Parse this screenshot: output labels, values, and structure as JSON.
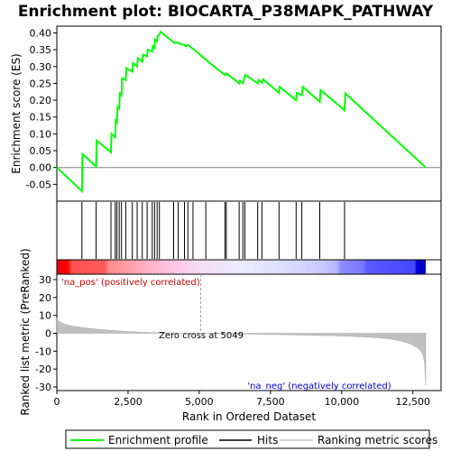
{
  "chart_data": [
    {
      "type": "line",
      "title": "Enrichment plot: BIOCARTA_P38MAPK_PATHWAY",
      "ylabel": "Enrichment score (ES)",
      "xlim": [
        0,
        12950
      ],
      "ylim": [
        -0.1,
        0.42
      ],
      "yticks": [
        -0.05,
        0.0,
        0.05,
        0.1,
        0.15,
        0.2,
        0.25,
        0.3,
        0.35,
        0.4
      ],
      "ytick_labels": [
        "-0.05",
        "0.00",
        "0.05",
        "0.10",
        "0.15",
        "0.20",
        "0.25",
        "0.30",
        "0.35",
        "0.40"
      ],
      "grid": false,
      "series": [
        {
          "name": "Enrichment profile",
          "color": "#00ff00",
          "x": [
            0,
            880,
            900,
            1380,
            1400,
            1900,
            1920,
            2050,
            2070,
            2110,
            2130,
            2190,
            2210,
            2270,
            2290,
            2420,
            2440,
            2650,
            2670,
            2820,
            2840,
            3000,
            3020,
            3170,
            3190,
            3350,
            3370,
            3430,
            3450,
            3520,
            3540,
            3600,
            3640,
            4100,
            4130,
            4260,
            4290,
            4480,
            4520,
            4600,
            4640,
            4780,
            4810,
            5230,
            5900,
            5950,
            6400,
            6430,
            6530,
            6580,
            6620,
            7050,
            7080,
            7200,
            7240,
            7800,
            7820,
            8400,
            8420,
            8600,
            8630,
            9230,
            9260,
            10100,
            10130,
            12950
          ],
          "y": [
            0.0,
            -0.07,
            0.04,
            0.003,
            0.08,
            0.045,
            0.1,
            0.09,
            0.14,
            0.135,
            0.18,
            0.175,
            0.22,
            0.215,
            0.265,
            0.26,
            0.295,
            0.285,
            0.31,
            0.3,
            0.325,
            0.315,
            0.335,
            0.33,
            0.35,
            0.345,
            0.36,
            0.355,
            0.38,
            0.375,
            0.39,
            0.395,
            0.403,
            0.372,
            0.37,
            0.372,
            0.368,
            0.364,
            0.36,
            0.364,
            0.362,
            0.352,
            0.351,
            0.32,
            0.275,
            0.28,
            0.25,
            0.258,
            0.25,
            0.265,
            0.275,
            0.25,
            0.26,
            0.252,
            0.262,
            0.222,
            0.24,
            0.2,
            0.222,
            0.215,
            0.24,
            0.195,
            0.23,
            0.17,
            0.22,
            0.0
          ]
        }
      ]
    },
    {
      "type": "hits",
      "name": "Hits",
      "x": [
        880,
        1380,
        1900,
        2050,
        2110,
        2190,
        2270,
        2420,
        2650,
        2820,
        3000,
        3170,
        3350,
        3430,
        3520,
        3600,
        4100,
        4260,
        4480,
        4600,
        4780,
        5230,
        5900,
        5950,
        6400,
        6530,
        6600,
        7050,
        7200,
        7800,
        8400,
        8600,
        9230,
        10100
      ]
    },
    {
      "type": "area",
      "name": "Ranking metric scores",
      "color": "#c0c0c0",
      "xlabel": "Rank in Ordered Dataset",
      "ylabel": "Ranked list metric (PreRanked)",
      "xlim": [
        0,
        12950
      ],
      "ylim": [
        -32,
        33
      ],
      "xticks": [
        0,
        2500,
        5000,
        7500,
        10000,
        12500
      ],
      "xtick_labels": [
        "0",
        "2,500",
        "5,000",
        "7,500",
        "10,000",
        "12,500"
      ],
      "yticks": [
        -30,
        -20,
        -10,
        0,
        10,
        20,
        30
      ],
      "ytick_labels": [
        "-30",
        "-20",
        "-10",
        "0",
        "10",
        "20",
        "30"
      ],
      "x": [
        0,
        50,
        150,
        300,
        500,
        800,
        1200,
        1600,
        2000,
        2500,
        3000,
        3500,
        4000,
        4500,
        5049,
        5600,
        6200,
        7000,
        8000,
        9000,
        10000,
        11000,
        11600,
        12000,
        12300,
        12500,
        12650,
        12750,
        12820,
        12870,
        12910,
        12950
      ],
      "y": [
        8.5,
        7.2,
        6.0,
        5.0,
        4.2,
        3.4,
        2.6,
        2.0,
        1.5,
        1.0,
        0.6,
        0.35,
        0.2,
        0.08,
        0.0,
        -0.15,
        -0.3,
        -0.5,
        -0.8,
        -1.1,
        -1.5,
        -2.2,
        -3.0,
        -4.0,
        -5.3,
        -6.6,
        -8.0,
        -9.5,
        -11.0,
        -13.0,
        -17.0,
        -29.0
      ],
      "annotations": {
        "pos_label": "'na_pos' (positively correlated)",
        "neg_label": "'na_neg' (negatively correlated)",
        "zero_cross": "Zero cross at 5049",
        "zero_cross_x": 5049
      }
    }
  ],
  "legend": {
    "placement": "bottom",
    "items": [
      {
        "label": "Enrichment profile",
        "color": "#00ff00"
      },
      {
        "label": "Hits",
        "color": "#000000"
      },
      {
        "label": "Ranking metric scores",
        "color": "#c0c0c0"
      }
    ]
  },
  "colors": {
    "profile": "#00ff00",
    "pos_label": "#cc0000",
    "neg_label": "#0000cc",
    "heat_pos": "#ff0000",
    "heat_neg": "#0000ff"
  }
}
